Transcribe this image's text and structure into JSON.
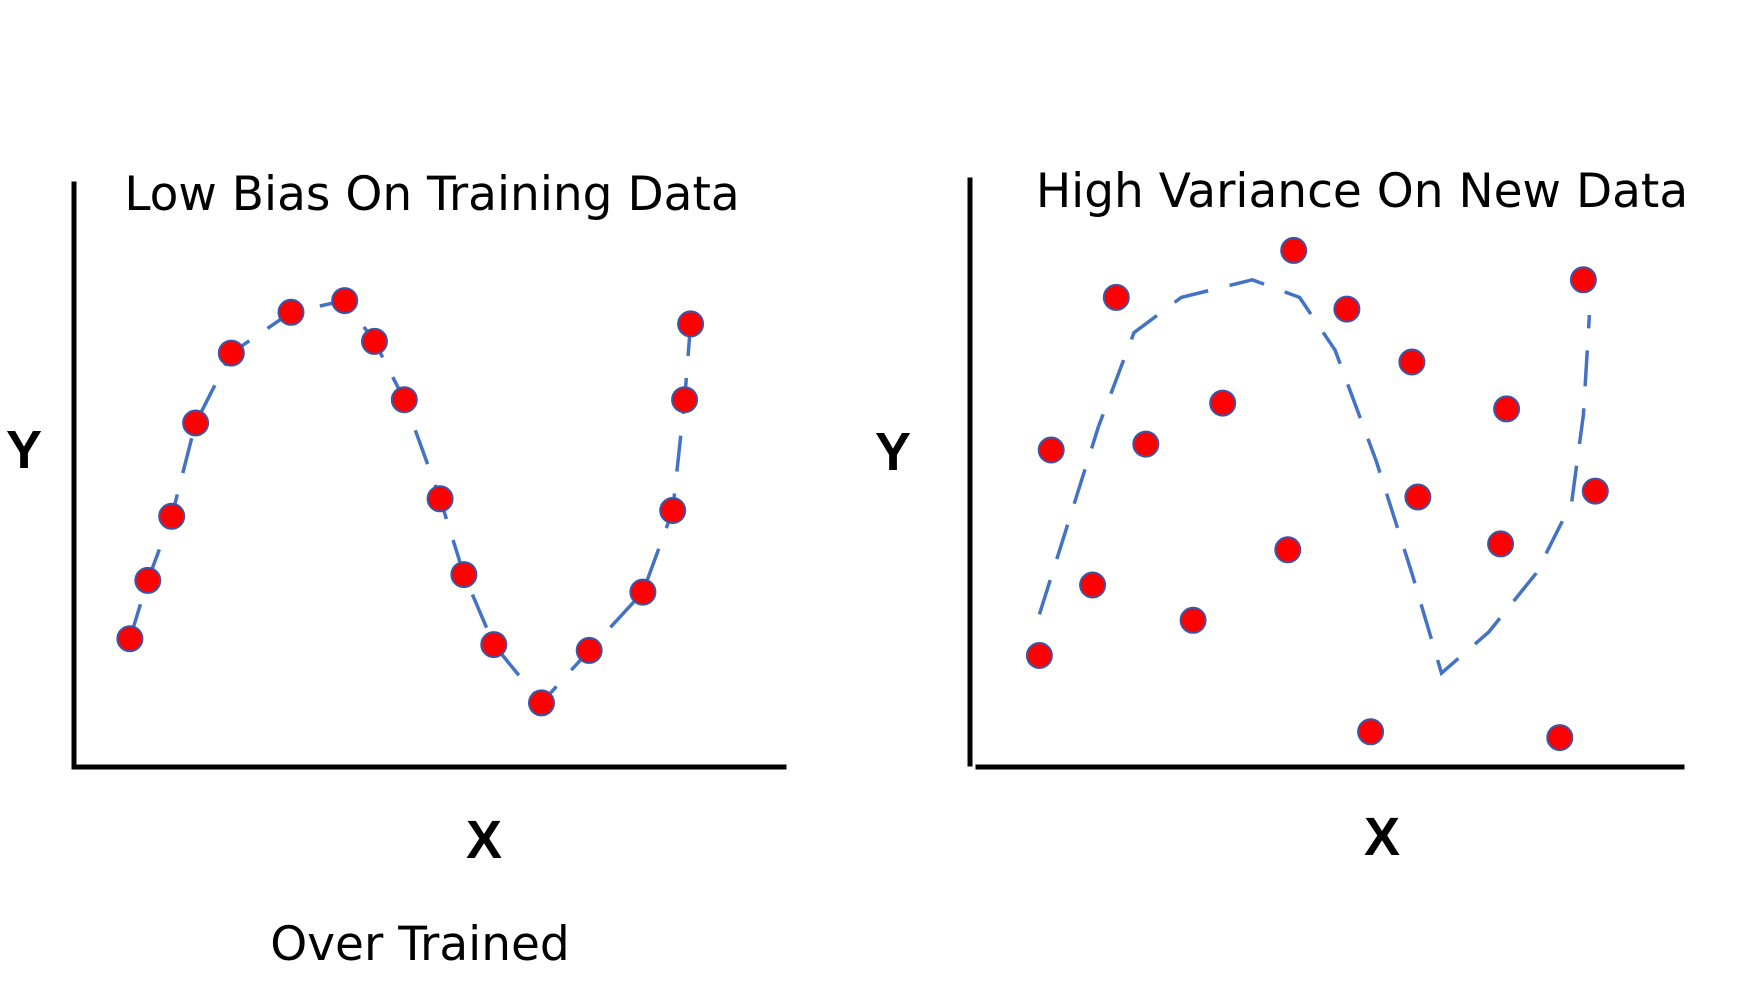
{
  "colors": {
    "point_fill": "#ff0000",
    "point_stroke": "#3b56a8",
    "fit_line": "#4472c4",
    "axis": "#000000"
  },
  "panels": [
    {
      "title": "Low Bias On Training Data",
      "xlabel": "X",
      "ylabel": "Y",
      "caption": "Over Trained",
      "line_style": "dashed",
      "points": [
        [
          0.07,
          0.22
        ],
        [
          0.1,
          0.32
        ],
        [
          0.14,
          0.43
        ],
        [
          0.18,
          0.59
        ],
        [
          0.24,
          0.71
        ],
        [
          0.34,
          0.78
        ],
        [
          0.43,
          0.8
        ],
        [
          0.48,
          0.73
        ],
        [
          0.53,
          0.63
        ],
        [
          0.59,
          0.46
        ],
        [
          0.63,
          0.33
        ],
        [
          0.68,
          0.21
        ],
        [
          0.76,
          0.11
        ],
        [
          0.84,
          0.2
        ],
        [
          0.93,
          0.3
        ],
        [
          0.98,
          0.44
        ],
        [
          1.0,
          0.63
        ],
        [
          1.01,
          0.76
        ]
      ],
      "curve": [
        [
          0.07,
          0.22
        ],
        [
          0.1,
          0.32
        ],
        [
          0.14,
          0.43
        ],
        [
          0.18,
          0.59
        ],
        [
          0.24,
          0.71
        ],
        [
          0.34,
          0.78
        ],
        [
          0.43,
          0.8
        ],
        [
          0.48,
          0.73
        ],
        [
          0.53,
          0.63
        ],
        [
          0.59,
          0.46
        ],
        [
          0.63,
          0.33
        ],
        [
          0.68,
          0.21
        ],
        [
          0.76,
          0.11
        ],
        [
          0.84,
          0.2
        ],
        [
          0.93,
          0.3
        ],
        [
          0.98,
          0.44
        ],
        [
          1.0,
          0.63
        ],
        [
          1.01,
          0.76
        ]
      ]
    },
    {
      "title": "High Variance On New Data",
      "xlabel": "X",
      "ylabel": "Y",
      "caption": "",
      "line_style": "dashed",
      "points": [
        [
          0.08,
          0.19
        ],
        [
          0.1,
          0.54
        ],
        [
          0.17,
          0.31
        ],
        [
          0.21,
          0.8
        ],
        [
          0.26,
          0.55
        ],
        [
          0.34,
          0.25
        ],
        [
          0.39,
          0.62
        ],
        [
          0.5,
          0.37
        ],
        [
          0.51,
          0.88
        ],
        [
          0.64,
          0.06
        ],
        [
          0.6,
          0.78
        ],
        [
          0.72,
          0.46
        ],
        [
          0.71,
          0.69
        ],
        [
          0.87,
          0.61
        ],
        [
          0.86,
          0.38
        ],
        [
          0.96,
          0.05
        ],
        [
          1.0,
          0.83
        ],
        [
          1.02,
          0.47
        ]
      ],
      "curve": [
        [
          0.08,
          0.26
        ],
        [
          0.18,
          0.58
        ],
        [
          0.24,
          0.74
        ],
        [
          0.32,
          0.8
        ],
        [
          0.44,
          0.83
        ],
        [
          0.52,
          0.8
        ],
        [
          0.58,
          0.71
        ],
        [
          0.65,
          0.52
        ],
        [
          0.71,
          0.33
        ],
        [
          0.76,
          0.16
        ],
        [
          0.84,
          0.23
        ],
        [
          0.92,
          0.33
        ],
        [
          0.98,
          0.45
        ],
        [
          1.0,
          0.6
        ],
        [
          1.01,
          0.77
        ]
      ]
    }
  ]
}
